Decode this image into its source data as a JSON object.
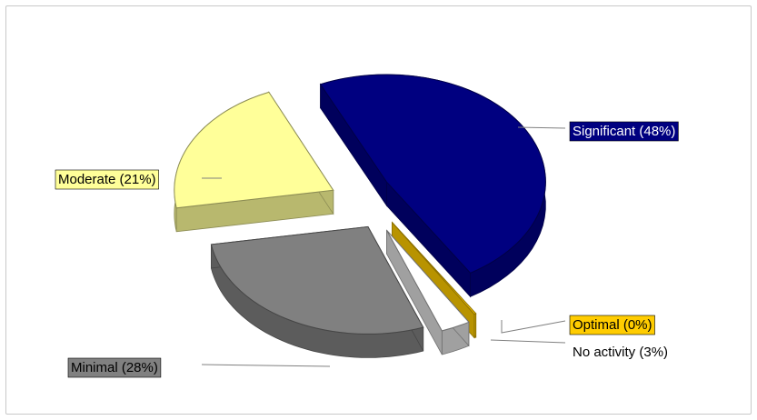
{
  "chart_data": {
    "type": "pie",
    "title": "",
    "categories": [
      "Significant",
      "Optimal",
      "No activity",
      "Minimal",
      "Moderate"
    ],
    "values": [
      48,
      0,
      3,
      28,
      21
    ],
    "labels": [
      "Significant (48%)",
      "Optimal (0%)",
      "No activity (3%)",
      "Minimal (28%)",
      "Moderate (21%)"
    ],
    "colors": {
      "Significant": "#000080",
      "Optimal": "#ffcc00",
      "No activity": "#ffffff",
      "Minimal": "#808080",
      "Moderate": "#ffff99"
    },
    "exploded": true,
    "three_d": true,
    "legend": "none",
    "data_labels": "outside"
  }
}
